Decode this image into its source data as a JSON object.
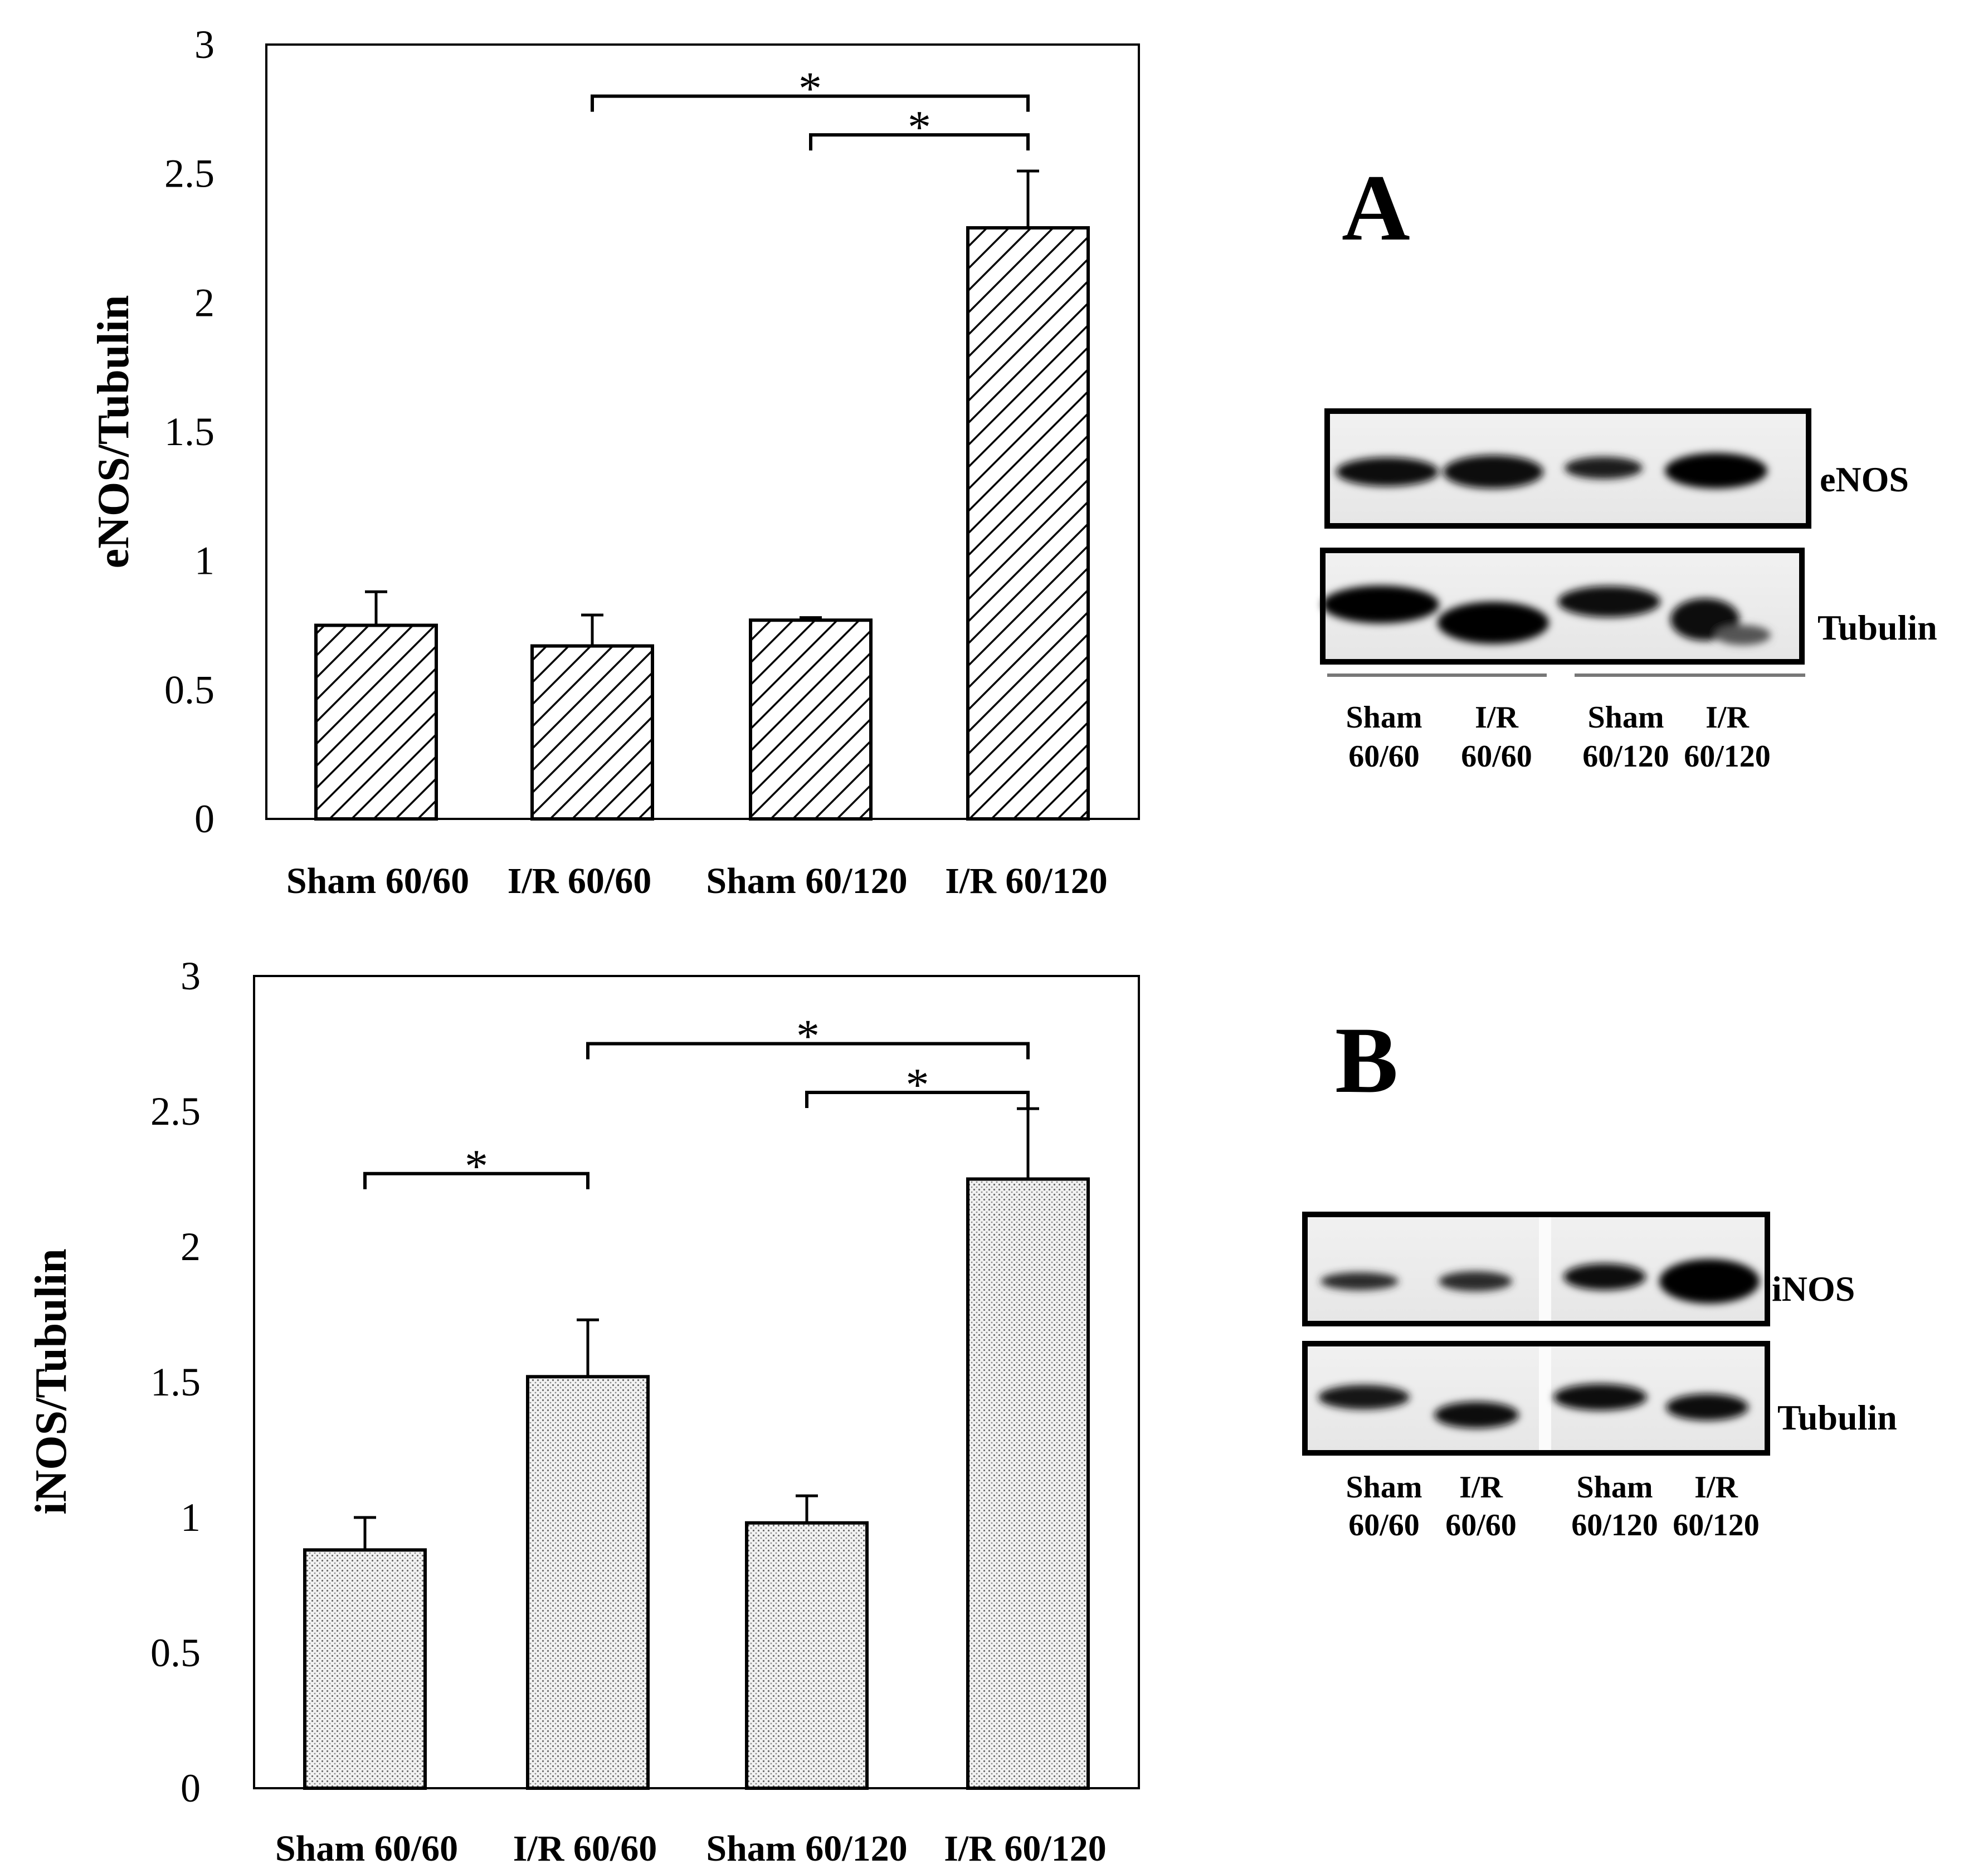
{
  "chart_data": [
    {
      "type": "bar",
      "panel": "A",
      "ylabel": "eNOS/Tubulin",
      "categories": [
        "Sham 60/60",
        "I/R 60/60",
        "Sham 60/120",
        "I/R 60/120"
      ],
      "values": [
        0.75,
        0.67,
        0.77,
        2.29
      ],
      "errors": [
        0.13,
        0.12,
        0.01,
        0.22
      ],
      "ylim": [
        0,
        3
      ],
      "yticks": [
        "0",
        "0.5",
        "1",
        "1.5",
        "2",
        "2.5",
        "3"
      ],
      "pattern": "diagonal-hatch",
      "significance": [
        {
          "from": 1,
          "to": 3,
          "y": 2.8,
          "label": "*"
        },
        {
          "from": 2,
          "to": 3,
          "y": 2.65,
          "label": "*"
        }
      ]
    },
    {
      "type": "bar",
      "panel": "B",
      "ylabel": "iNOS/Tubulin",
      "categories": [
        "Sham 60/60",
        "I/R 60/60",
        "Sham 60/120",
        "I/R 60/120"
      ],
      "values": [
        0.88,
        1.52,
        0.98,
        2.25
      ],
      "errors": [
        0.12,
        0.21,
        0.1,
        0.26
      ],
      "ylim": [
        0,
        3
      ],
      "yticks": [
        "0",
        "0.5",
        "1",
        "1.5",
        "2",
        "2.5",
        "3"
      ],
      "pattern": "dots",
      "significance": [
        {
          "from": 0,
          "to": 1,
          "y": 2.27,
          "label": "*"
        },
        {
          "from": 1,
          "to": 3,
          "y": 2.75,
          "label": "*"
        },
        {
          "from": 2,
          "to": 3,
          "y": 2.57,
          "label": "*"
        }
      ]
    }
  ],
  "blots": {
    "A": {
      "panel_label": "A",
      "rows": [
        "eNOS",
        "Tubulin"
      ],
      "lanes": [
        {
          "line1": "Sham",
          "line2": "60/60"
        },
        {
          "line1": "I/R",
          "line2": "60/60"
        },
        {
          "line1": "Sham",
          "line2": "60/120"
        },
        {
          "line1": "I/R",
          "line2": "60/120"
        }
      ]
    },
    "B": {
      "panel_label": "B",
      "rows": [
        "iNOS",
        "Tubulin"
      ],
      "lanes": [
        {
          "line1": "Sham",
          "line2": "60/60"
        },
        {
          "line1": "I/R",
          "line2": "60/60"
        },
        {
          "line1": "Sham",
          "line2": "60/120"
        },
        {
          "line1": "I/R",
          "line2": "60/120"
        }
      ]
    }
  }
}
